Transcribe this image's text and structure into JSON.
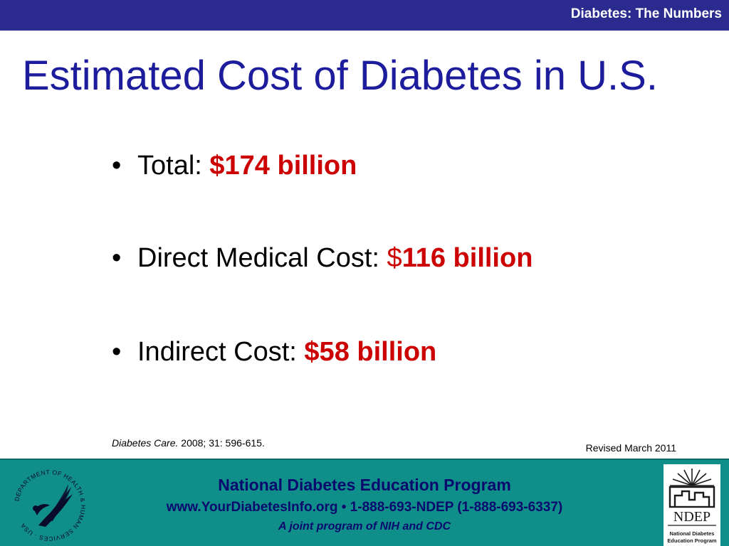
{
  "header": {
    "banner_title": "Diabetes: The Numbers"
  },
  "slide": {
    "title": "Estimated Cost of Diabetes in U.S.",
    "bullets": [
      {
        "label": "Total: ",
        "value_prefix": "",
        "value": "$174 billion"
      },
      {
        "label": "Direct Medical Cost: ",
        "value_prefix": "$",
        "value": "116 billion"
      },
      {
        "label": "Indirect Cost: ",
        "value_prefix": "",
        "value": "$58 billion"
      }
    ],
    "bullet_glyph": "•",
    "citation": {
      "journal": "Diabetes Care.",
      "details": " 2008; 31: 596-615."
    },
    "revised": "Revised March 2011"
  },
  "footer": {
    "program_name": "National Diabetes Education Program",
    "contact": "www.YourDiabetesInfo.org • 1-888-693-NDEP (1-888-693-6337)",
    "tagline": "A joint program of NIH and CDC",
    "hhs_seal_text": "DEPARTMENT OF HEALTH & HUMAN SERVICES · USA",
    "ndep_logo_text": "NDEP",
    "ndep_logo_subtext_1": "National Diabetes",
    "ndep_logo_subtext_2": "Education Program"
  },
  "colors": {
    "banner": "#2b2a8f",
    "title": "#1c1c9c",
    "accent_value": "#cc0000",
    "footer_bg": "#0f8e8a",
    "footer_text": "#0a0a6e"
  }
}
